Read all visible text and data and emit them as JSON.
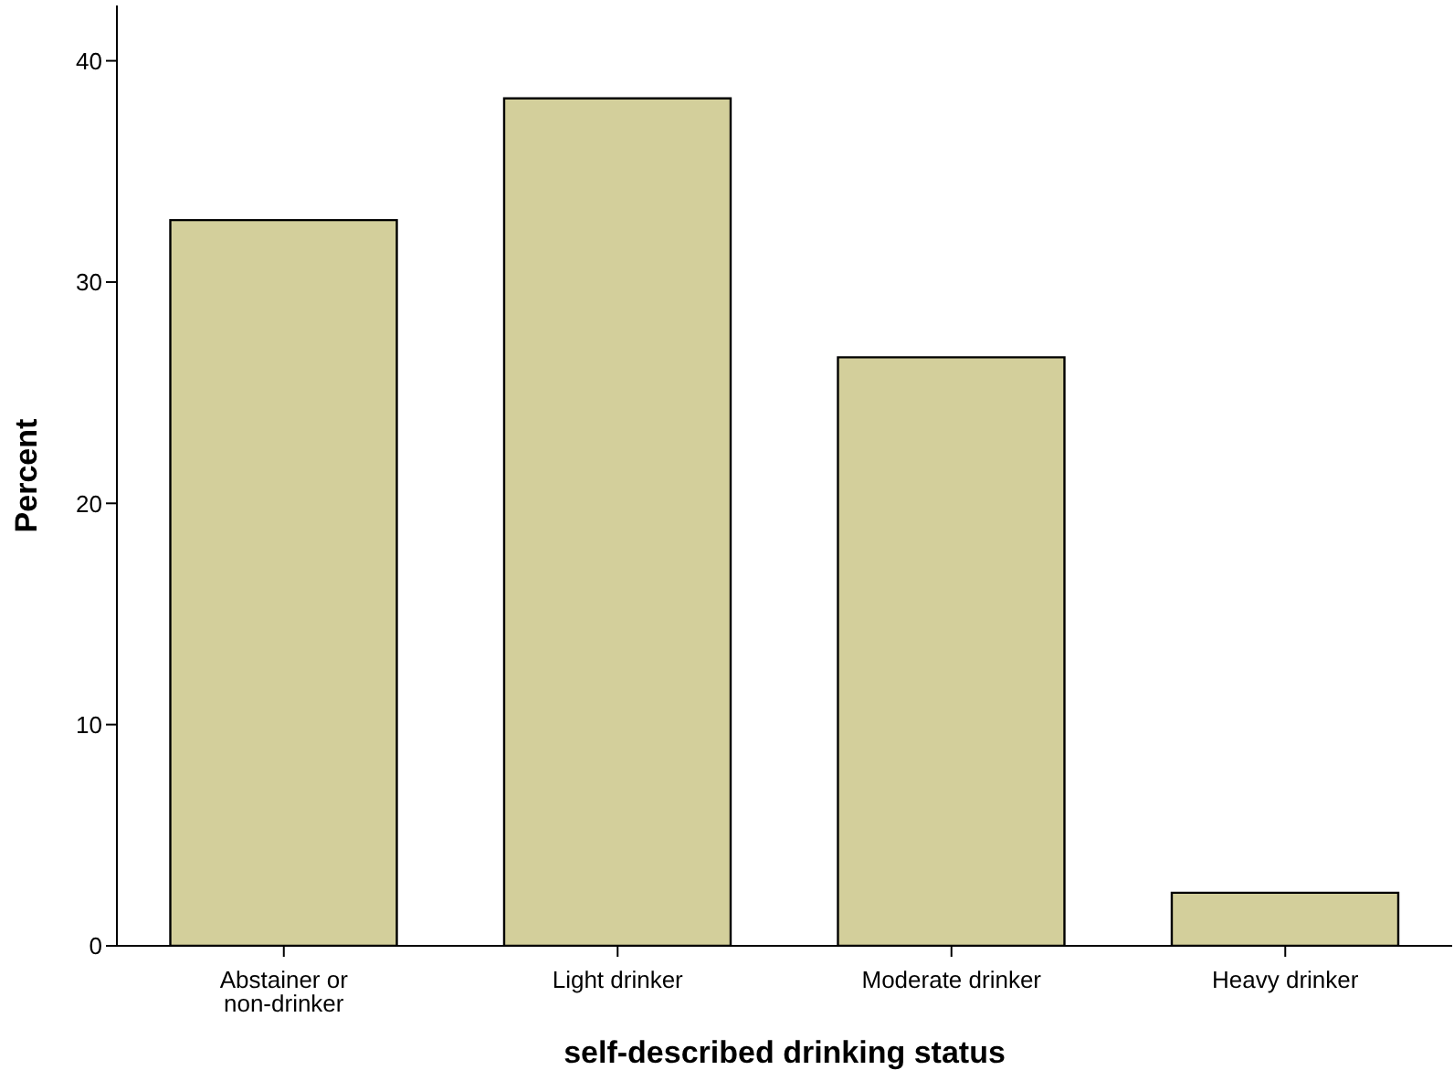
{
  "chart_data": {
    "type": "bar",
    "xlabel": "self-described drinking status",
    "ylabel": "Percent",
    "categories": [
      "Abstainer or non-drinker",
      "Light drinker",
      "Moderate drinker",
      "Heavy drinker"
    ],
    "values": [
      32.8,
      38.3,
      26.6,
      2.4
    ],
    "color": "#d3cf9b",
    "ylim": [
      0,
      42.5
    ],
    "yticks": [
      0,
      10,
      20,
      30,
      40
    ],
    "grid": false,
    "legend": false
  }
}
